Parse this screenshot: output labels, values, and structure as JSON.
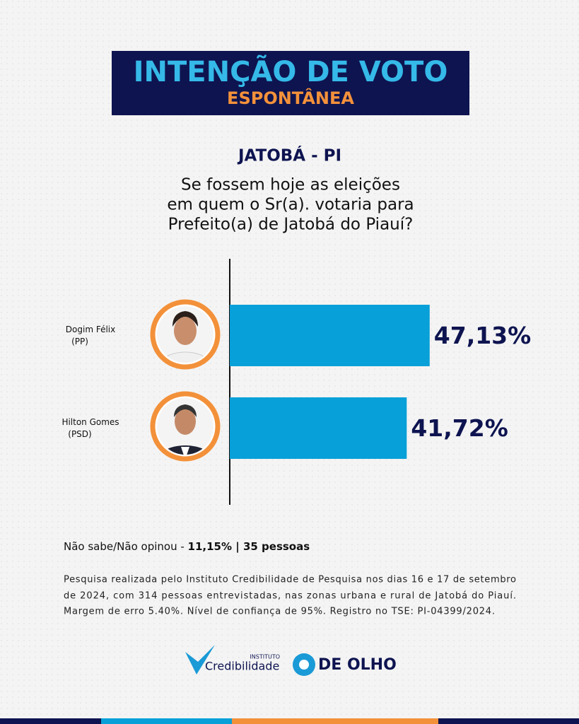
{
  "chart_data": {
    "type": "bar",
    "orientation": "horizontal",
    "title": "INTENÇÃO DE VOTO",
    "subtitle": "ESPONTÂNEA",
    "location": "JATOBÁ - PI",
    "question": [
      "Se fossem hoje as eleições",
      "em quem o Sr(a). votaria para",
      "Prefeito(a) de Jatobá do Piauí?"
    ],
    "categories": [
      "Dogim Félix",
      "Hilton Gomes"
    ],
    "parties": [
      "(PP)",
      "(PSD)"
    ],
    "values": [
      47.13,
      41.72
    ],
    "value_labels": [
      "47,13%",
      "41,72%"
    ],
    "color": "#08a0d8"
  },
  "footer": {
    "note_label": "Não sabe/Não opinou - ",
    "note_value": "11,15% | 35 pessoas",
    "methodology": [
      "Pesquisa realizada pelo  Instituto Credibilidade de Pesquisa nos dias 16 e 17 de setembro",
      "de 2024, com 314 pessoas entrevistadas, nas zonas urbana e rural de Jatobá do Piauí.",
      "Margem de erro 5.40%. Nível de confiança de 95%. Registro no TSE:   PI-04399/2024."
    ],
    "logo_1_small": "INSTITUTO",
    "logo_1": "Credibilidade",
    "logo_2": "DE OLHO"
  }
}
